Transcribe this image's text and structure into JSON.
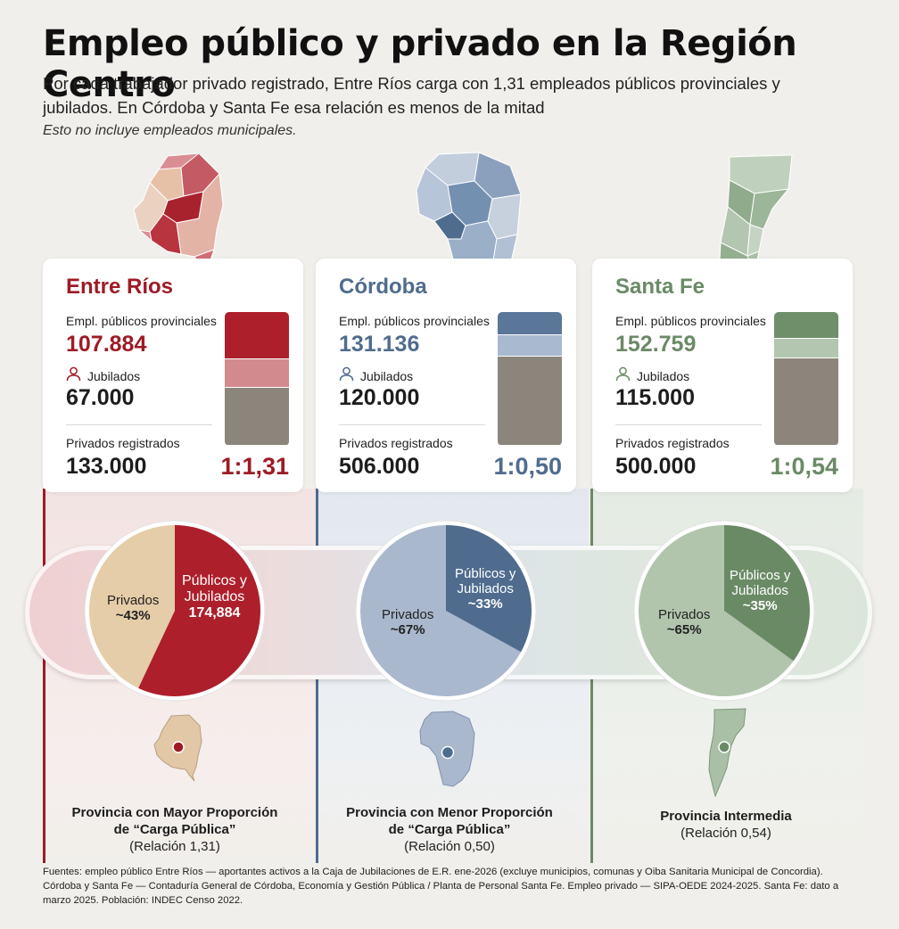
{
  "header": {
    "title": "Empleo público y privado en la Región Centro",
    "subtitle": "Por cada trabajador privado registrado, Entre Ríos carga con 1,31 empleados públicos provinciales y jubilados. En Córdoba y Santa Fe esa relación es menos de la mitad",
    "note": "Esto no incluye empleados municipales."
  },
  "labels": {
    "publicos": "Empl. públicos provinciales",
    "jubilados": "Jubilados",
    "privados": "Privados registrados"
  },
  "colors": {
    "entre_rios": "#9e1b25",
    "cordoba": "#4f6c8e",
    "santa_fe": "#6a8a66",
    "private_bar": "#8b857c"
  },
  "provinces": [
    {
      "name": "Entre Ríos",
      "publicos": "107.884",
      "jubilados": "67.000",
      "privados": "133.000",
      "ratio": "1:1,31",
      "pie_private_label": "Privados",
      "pie_private_pct": "~43%",
      "pie_public_label_1": "Públicos y",
      "pie_public_label_2": "Jubilados",
      "pie_public_value": "174,884",
      "desc_line1": "Provincia con Mayor Proporción",
      "desc_line2": "de “Carga Pública”",
      "desc_line3": "(Relación 1,31)"
    },
    {
      "name": "Córdoba",
      "publicos": "131.136",
      "jubilados": "120.000",
      "privados": "506.000",
      "ratio": "1:0,50",
      "pie_private_label": "Privados",
      "pie_private_pct": "~67%",
      "pie_public_label_1": "Públicos y",
      "pie_public_label_2": "Jubilados",
      "pie_public_value": "~33%",
      "desc_line1": "Provincia con Menor Proporción",
      "desc_line2": "de “Carga Pública”",
      "desc_line3": "(Relación 0,50)"
    },
    {
      "name": "Santa Fe",
      "publicos": "152.759",
      "jubilados": "115.000",
      "privados": "500.000",
      "ratio": "1:0,54",
      "pie_private_label": "Privados",
      "pie_private_pct": "~65%",
      "pie_public_label_1": "Públicos y",
      "pie_public_label_2": "Jubilados",
      "pie_public_value": "~35%",
      "desc_line1": "Provincia Intermedia",
      "desc_line2": "",
      "desc_line3": "(Relación 0,54)"
    }
  ],
  "chart_data": [
    {
      "type": "bar",
      "title": "",
      "categories": [
        "Entre Ríos",
        "Córdoba",
        "Santa Fe"
      ],
      "series": [
        {
          "name": "Empl. públicos provinciales",
          "values": [
            107884,
            131136,
            152759
          ]
        },
        {
          "name": "Jubilados",
          "values": [
            67000,
            120000,
            115000
          ]
        },
        {
          "name": "Privados registrados",
          "values": [
            133000,
            506000,
            500000
          ]
        }
      ],
      "stacked": true
    },
    {
      "type": "pie",
      "title": "Entre Ríos",
      "categories": [
        "Privados",
        "Públicos y Jubilados"
      ],
      "values": [
        43,
        57
      ]
    },
    {
      "type": "pie",
      "title": "Córdoba",
      "categories": [
        "Privados",
        "Públicos y Jubilados"
      ],
      "values": [
        67,
        33
      ]
    },
    {
      "type": "pie",
      "title": "Santa Fe",
      "categories": [
        "Privados",
        "Públicos y Jubilados"
      ],
      "values": [
        65,
        35
      ]
    }
  ],
  "sources": "Fuentes: empleo público Entre Ríos — aportantes activos a la Caja de Jubilaciones de E.R. ene-2026 (excluye municipios, comunas y Oiba Sanitaria Municipal de Concordia). Córdoba y Santa Fe — Contaduría General de Córdoba, Economía y Gestión Pública / Planta de Personal Santa Fe. Empleo privado — SIPA-OEDE 2024-2025. Santa Fe: dato a marzo 2025. Población: INDEC Censo 2022."
}
